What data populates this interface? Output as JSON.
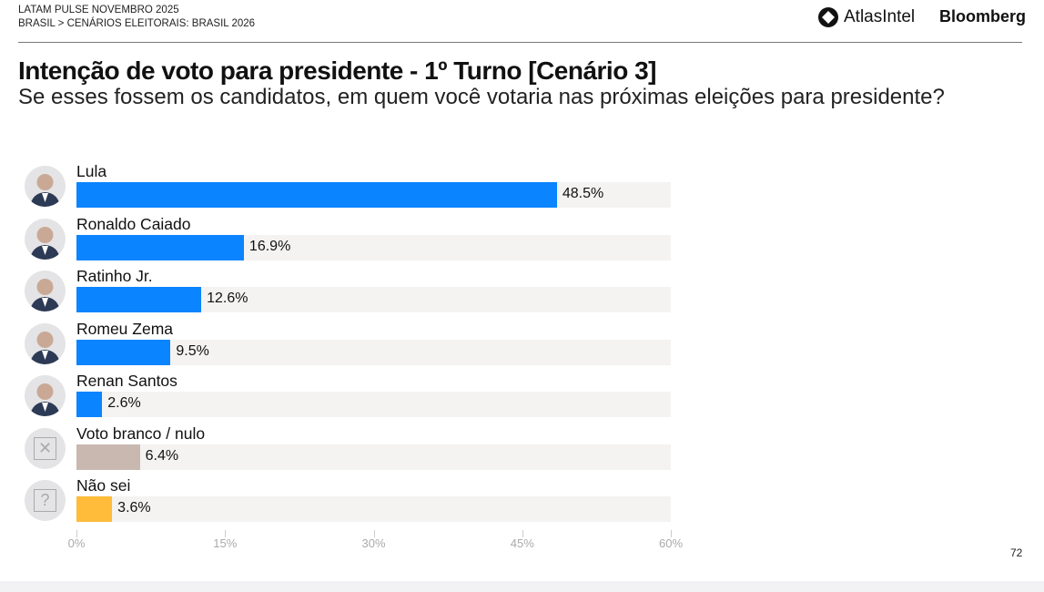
{
  "header": {
    "line1": "LATAM PULSE NOVEMBRO 2025",
    "line2": "BRASIL > CENÁRIOS ELEITORAIS: BRASIL 2026",
    "logo_atlas": "AtlasIntel",
    "logo_bloomberg": "Bloomberg"
  },
  "title": "Intenção de voto para presidente - 1º Turno [Cenário 3]",
  "subtitle": "Se esses fossem os candidatos, em quem você votaria nas próximas eleições para presidente?",
  "page_number": "72",
  "chart_data": {
    "type": "bar",
    "orientation": "horizontal",
    "xlim": [
      0,
      60
    ],
    "ticks": [
      "0%",
      "15%",
      "30%",
      "45%",
      "60%"
    ],
    "categories": [
      "Lula",
      "Ronaldo Caiado",
      "Ratinho Jr.",
      "Romeu Zema",
      "Renan Santos",
      "Voto branco / nulo",
      "Não sei"
    ],
    "values": [
      48.5,
      16.9,
      12.6,
      9.5,
      2.6,
      6.4,
      3.6
    ],
    "labels": [
      "48.5%",
      "16.9%",
      "12.6%",
      "9.5%",
      "2.6%",
      "6.4%",
      "3.6%"
    ],
    "colors": [
      "#0a84ff",
      "#0a84ff",
      "#0a84ff",
      "#0a84ff",
      "#0a84ff",
      "#c9b8b0",
      "#ffbb3a"
    ],
    "icons": [
      "photo",
      "photo",
      "photo",
      "photo",
      "photo",
      "x-box-icon",
      "question-box-icon"
    ]
  }
}
